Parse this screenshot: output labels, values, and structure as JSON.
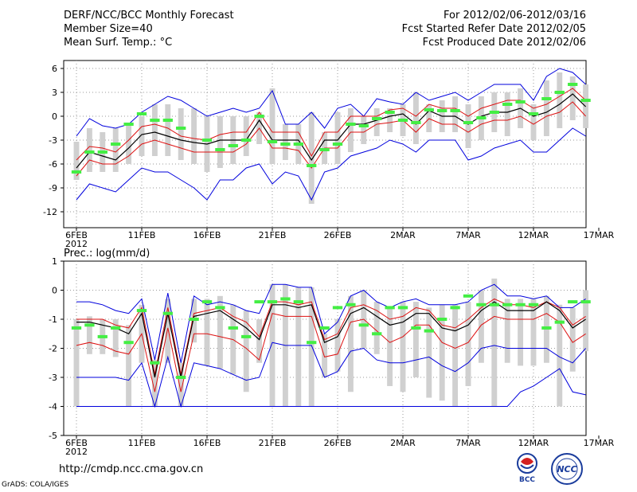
{
  "header": {
    "title": "DERF/NCC/BCC Monthly Forecast",
    "member_size": "Member Size=40",
    "variable": "Mean Surf. Temp.: °C",
    "period": "For 2012/02/06-2012/03/16",
    "started": "Fcst Started Refer Date 2012/02/05",
    "produced": "Fcst Produced Date 2012/02/06"
  },
  "footer": {
    "url": "http://cmdp.ncc.cma.gov.cn",
    "grads": "GrADS: COLA/IGES",
    "logo1": "BCC",
    "logo2": "NCC"
  },
  "colors": {
    "ensemble_mean": "#000000",
    "pct_band": "#dd1111",
    "extreme": "#0000dd",
    "spread_bar": "#d0d0d0",
    "obs_climo": "#44ee44"
  },
  "chart_data": [
    {
      "type": "line",
      "title": "Mean Surf. Temp.: °C",
      "ylim": [
        -14,
        7
      ],
      "yticks": [
        6,
        3,
        0,
        -3,
        -6,
        -9,
        -12
      ],
      "xticks": [
        {
          "day": 0,
          "label": "6FEB",
          "sub": "2012"
        },
        {
          "day": 5,
          "label": "11FEB"
        },
        {
          "day": 10,
          "label": "16FEB"
        },
        {
          "day": 15,
          "label": "21FEB"
        },
        {
          "day": 20,
          "label": "26FEB"
        },
        {
          "day": 25,
          "label": "2MAR"
        },
        {
          "day": 30,
          "label": "7MAR"
        },
        {
          "day": 35,
          "label": "12MAR"
        },
        {
          "day": 40,
          "label": "17MAR"
        }
      ],
      "series": [
        {
          "name": "max",
          "values": [
            -2.5,
            -0.3,
            -1.2,
            -1.5,
            -1,
            0.5,
            1.5,
            2.5,
            2,
            1,
            0,
            0.5,
            1,
            0.5,
            1,
            3.2,
            -1,
            -1,
            0.5,
            -1.5,
            1,
            1.5,
            0,
            2.2,
            1.8,
            1.5,
            3,
            2,
            2.5,
            3,
            2,
            3,
            4,
            4,
            4,
            2,
            5,
            6,
            5.5,
            4
          ]
        },
        {
          "name": "p75",
          "values": [
            -5.5,
            -3.8,
            -4,
            -4.5,
            -3,
            -1.3,
            -1,
            -1.5,
            -2.5,
            -2.8,
            -3,
            -2.3,
            -2,
            -2,
            0.5,
            -2,
            -2,
            -2,
            -5,
            -2,
            -2,
            0,
            0,
            0,
            0.8,
            1,
            0,
            1.5,
            1,
            1,
            0,
            1,
            1.5,
            2,
            2,
            1,
            1.5,
            2.5,
            3.5,
            2
          ]
        },
        {
          "name": "mean",
          "values": [
            -6.5,
            -4.5,
            -5,
            -5.5,
            -4,
            -2.3,
            -2,
            -2.5,
            -3,
            -3.3,
            -3.5,
            -3,
            -3,
            -3,
            -0.5,
            -3,
            -3,
            -3,
            -5.5,
            -3,
            -3,
            -1,
            -1,
            -0.5,
            0,
            0.3,
            -1,
            0.7,
            0,
            0,
            -1,
            0,
            0.5,
            0.5,
            1,
            0,
            0.5,
            1.5,
            2.8,
            1.2
          ]
        },
        {
          "name": "p25",
          "values": [
            -7.5,
            -5.5,
            -6,
            -6,
            -5,
            -3.5,
            -3,
            -3.5,
            -4,
            -4.5,
            -4.5,
            -4.5,
            -4.5,
            -3.5,
            -1.5,
            -4,
            -4,
            -4.3,
            -6.5,
            -4,
            -4,
            -2,
            -2,
            -1,
            -0.8,
            -0.5,
            -2,
            -0.3,
            -1,
            -1,
            -2,
            -1,
            -0.5,
            -0.5,
            0,
            -1,
            0,
            0.5,
            1.8,
            0
          ]
        },
        {
          "name": "min",
          "values": [
            -10.5,
            -8.5,
            -9,
            -9.5,
            -8,
            -6.5,
            -7,
            -7,
            -8,
            -9,
            -10.5,
            -8,
            -8,
            -6.5,
            -6,
            -8.5,
            -7,
            -7.5,
            -10.5,
            -7,
            -6.5,
            -5,
            -4.5,
            -4,
            -3,
            -3.5,
            -4.5,
            -3,
            -3,
            -3,
            -5.5,
            -5,
            -4,
            -3.5,
            -3,
            -4.5,
            -4.5,
            -3,
            -1.5,
            -2.5
          ]
        },
        {
          "name": "bar_top",
          "values": [
            -3.2,
            -1.5,
            -2,
            -1.5,
            -1,
            0,
            1.5,
            1.5,
            1,
            1,
            0,
            0,
            0,
            0,
            0.5,
            3.5,
            -1,
            -1,
            0.5,
            -2,
            0.5,
            1,
            0,
            1,
            1,
            1.5,
            3,
            1.5,
            2,
            2.5,
            1.5,
            2.5,
            3,
            3,
            3.5,
            1.5,
            4.5,
            5.5,
            5,
            4
          ]
        },
        {
          "name": "bar_bottom",
          "values": [
            -8,
            -7,
            -7,
            -7,
            -6,
            -5,
            -5,
            -5,
            -5.5,
            -6,
            -7,
            -6.5,
            -6,
            -5,
            -3.5,
            -6,
            -5.5,
            -6,
            -11,
            -6,
            -6,
            -4.5,
            -3.5,
            -2.5,
            -2,
            -2.5,
            -3.5,
            -2,
            -2,
            -2,
            -4,
            -3,
            -2,
            -2.5,
            -1.5,
            -3,
            -2.5,
            -1.5,
            -0.5,
            -1.5
          ]
        },
        {
          "name": "obs",
          "values": [
            -7,
            -4.5,
            -4.5,
            -3.5,
            -1,
            0.3,
            -0.5,
            -0.5,
            -1.5,
            null,
            -3,
            -4.2,
            -3.7,
            -3,
            0,
            -3.2,
            -3.5,
            -3.5,
            -6.2,
            -4.2,
            -3.5,
            -1,
            -1.2,
            -0.3,
            0.5,
            -0.5,
            -0.8,
            0.8,
            0.7,
            0.7,
            -0.8,
            -0.2,
            0.5,
            1.5,
            1.8,
            0.3,
            2.2,
            3,
            4,
            2
          ]
        }
      ]
    },
    {
      "type": "line",
      "title": "Prec.: log(mm/d)",
      "ylim": [
        -5,
        1
      ],
      "yticks": [
        1,
        0,
        -1,
        -2,
        -3,
        -4,
        -5
      ],
      "xticks": [
        {
          "day": 0,
          "label": "6FEB",
          "sub": "2012"
        },
        {
          "day": 5,
          "label": "11FEB"
        },
        {
          "day": 10,
          "label": "16FEB"
        },
        {
          "day": 15,
          "label": "21FEB"
        },
        {
          "day": 20,
          "label": "26FEB"
        },
        {
          "day": 25,
          "label": "2MAR"
        },
        {
          "day": 30,
          "label": "7MAR"
        },
        {
          "day": 35,
          "label": "12MAR"
        },
        {
          "day": 40,
          "label": "17MAR"
        }
      ],
      "series": [
        {
          "name": "max",
          "values": [
            -0.4,
            -0.4,
            -0.5,
            -0.7,
            -0.8,
            -0.3,
            -2.4,
            -0.1,
            -2.5,
            -0.2,
            -0.5,
            -0.4,
            -0.5,
            -0.7,
            -0.8,
            0.2,
            0.2,
            0.1,
            0.1,
            -1.5,
            -1.1,
            -0.2,
            0,
            -0.4,
            -0.6,
            -0.4,
            -0.3,
            -0.5,
            -0.5,
            -0.5,
            -0.4,
            0,
            0.2,
            -0.2,
            -0.2,
            -0.3,
            -0.2,
            -0.6,
            -0.6,
            -0.3
          ]
        },
        {
          "name": "p75",
          "values": [
            -1,
            -1,
            -1,
            -1.2,
            -1.3,
            -0.6,
            -2.9,
            -0.6,
            -2.9,
            -0.8,
            -0.7,
            -0.6,
            -0.9,
            -1.1,
            -1.6,
            -0.4,
            -0.4,
            -0.5,
            -0.4,
            -1.7,
            -1.5,
            -0.6,
            -0.5,
            -0.7,
            -1,
            -0.9,
            -0.6,
            -0.7,
            -1.2,
            -1.3,
            -1,
            -0.6,
            -0.3,
            -0.5,
            -0.5,
            -0.6,
            -0.4,
            -0.6,
            -1.2,
            -0.9
          ]
        },
        {
          "name": "mean",
          "values": [
            -1.1,
            -1.1,
            -1.2,
            -1.3,
            -1.5,
            -0.8,
            -3,
            -0.8,
            -3,
            -0.9,
            -0.8,
            -0.7,
            -1,
            -1.3,
            -1.7,
            -0.5,
            -0.5,
            -0.6,
            -0.5,
            -1.8,
            -1.6,
            -0.8,
            -0.6,
            -0.9,
            -1.2,
            -1.1,
            -0.8,
            -0.8,
            -1.3,
            -1.4,
            -1.2,
            -0.7,
            -0.4,
            -0.7,
            -0.7,
            -0.7,
            -0.4,
            -0.7,
            -1.3,
            -1
          ]
        },
        {
          "name": "p25",
          "values": [
            -1.9,
            -1.8,
            -1.9,
            -2.1,
            -2.2,
            -1.5,
            -3.5,
            -1.3,
            -3.5,
            -1.5,
            -1.5,
            -1.6,
            -1.7,
            -2,
            -2.4,
            -0.8,
            -0.9,
            -0.9,
            -0.9,
            -2.3,
            -2.2,
            -1.1,
            -1,
            -1.4,
            -1.8,
            -1.6,
            -1.2,
            -1.2,
            -1.8,
            -2,
            -1.8,
            -1.2,
            -0.9,
            -1,
            -1,
            -1,
            -0.8,
            -1.1,
            -1.8,
            -1.5
          ]
        },
        {
          "name": "min",
          "values": [
            -3,
            -3,
            -3,
            -3,
            -3.1,
            -2.5,
            -4,
            -2.3,
            -4,
            -2.5,
            -2.6,
            -2.7,
            -2.9,
            -3.1,
            -3,
            -1.8,
            -1.9,
            -1.9,
            -1.9,
            -3,
            -2.8,
            -2.1,
            -2,
            -2.4,
            -2.5,
            -2.5,
            -2.4,
            -2.3,
            -2.6,
            -2.8,
            -2.5,
            -2,
            -1.9,
            -2,
            -2,
            -2,
            -2,
            -2.3,
            -2.5,
            -2
          ]
        },
        {
          "name": "extreme_low",
          "values": [
            -4,
            -4,
            -4,
            -4,
            -4,
            -4,
            -4,
            -4,
            -4,
            -4,
            -4,
            -4,
            -4,
            -4,
            -4,
            -4,
            -4,
            -4,
            -4,
            -4,
            -4,
            -4,
            -4,
            -4,
            -4,
            -4,
            -4,
            -4,
            -4,
            -4,
            -4,
            -4,
            -4,
            -4,
            -3.5,
            -3.3,
            -3,
            -2.7,
            -3.5,
            -3.6
          ]
        },
        {
          "name": "bar_top",
          "values": [
            -1,
            -0.9,
            -1,
            -1,
            -1.2,
            -0.5,
            -2.4,
            -0.3,
            -2.5,
            -0.3,
            -0.3,
            -0.2,
            -0.5,
            -0.7,
            -1,
            0.2,
            0.2,
            0.1,
            0.1,
            -1.5,
            -1,
            -0.2,
            0,
            -0.4,
            -0.6,
            -0.4,
            -0.4,
            -0.6,
            -0.5,
            -0.5,
            -0.4,
            0,
            0.4,
            -0.3,
            -0.3,
            -0.3,
            -0.2,
            -0.5,
            -0.6,
            0
          ]
        },
        {
          "name": "bar_bottom",
          "values": [
            -4,
            -2.2,
            -2.2,
            -2.3,
            -4,
            -2.5,
            -4,
            -2.5,
            -4,
            -1.8,
            -2.6,
            -2.7,
            -2.9,
            -3.5,
            -2.5,
            -4,
            -4,
            -4,
            -4,
            -3,
            -2.8,
            -3.5,
            -2,
            -2.2,
            -3.3,
            -3.5,
            -3,
            -3.7,
            -3.8,
            -4,
            -3.3,
            -2.5,
            -4,
            -2.5,
            -2.6,
            -2.6,
            -2.5,
            -4,
            -2.8,
            -2.1
          ]
        },
        {
          "name": "obs",
          "values": [
            -1.3,
            -1.2,
            -1.6,
            -1.3,
            -1.8,
            -0.7,
            -2.5,
            -0.8,
            -3,
            -1,
            -0.4,
            -0.6,
            -1.3,
            -1.6,
            -0.4,
            -0.4,
            -0.3,
            -0.4,
            -1.8,
            -1.3,
            -0.6,
            -0.5,
            -1.2,
            -1.5,
            -0.6,
            -0.6,
            -1.3,
            -1.4,
            -1,
            -0.6,
            -0.2,
            -0.5,
            -0.5,
            -0.5,
            -0.5,
            -0.5,
            -1.3,
            -1.1,
            -0.4,
            -0.4
          ]
        }
      ]
    }
  ]
}
